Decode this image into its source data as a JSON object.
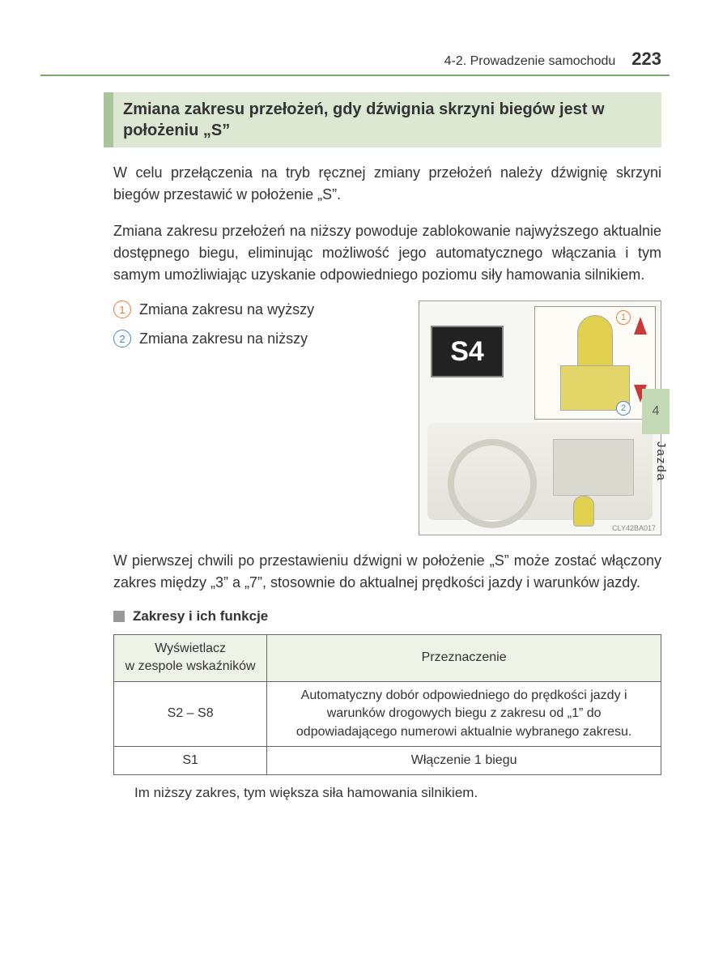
{
  "header": {
    "section": "4-2. Prowadzenie samochodu",
    "page_number": "223"
  },
  "title": "Zmiana zakresu przełożeń, gdy dźwignia skrzyni biegów jest w położeniu „S”",
  "paragraphs": {
    "p1": "W celu przełączenia na tryb ręcznej zmiany przełożeń należy dźwignię skrzyni biegów przestawić w położenie „S”.",
    "p2": "Zmiana zakresu przełożeń na niższy powoduje zablokowanie najwyższego aktualnie dostępnego biegu, eliminując możliwość jego automatycznego włączania i tym samym umożliwiając uzyskanie odpowiedniego poziomu siły hamowania silnikiem.",
    "p3": "W pierwszej chwili po przestawieniu dźwigni w położenie „S” może zostać włączony zakres między „3” a „7”, stosownie do aktualnej prędkości jazdy i warunków jazdy."
  },
  "list": {
    "item1": {
      "num": "1",
      "text": "Zmiana zakresu na wyższy"
    },
    "item2": {
      "num": "2",
      "text": "Zmiana zakresu na niższy"
    }
  },
  "figure": {
    "badge": "S4",
    "inset1": "1",
    "inset2": "2",
    "code": "CLY42BA017"
  },
  "sub_heading": "Zakresy i ich funkcje",
  "table": {
    "head1": "Wyświetlacz\nw zespole wskaźników",
    "head2": "Przeznaczenie",
    "r1c1": "S2 – S8",
    "r1c2": "Automatyczny dobór odpowiedniego do prędkości jazdy i warunków drogowych biegu z zakresu od „1” do odpowiadającego numerowi aktualnie wybranego zakresu.",
    "r2c1": "S1",
    "r2c2": "Włączenie 1 biegu"
  },
  "note": "Im niższy zakres, tym większa siła hamowania silnikiem.",
  "side": {
    "tab": "4",
    "label": "Jazda"
  }
}
